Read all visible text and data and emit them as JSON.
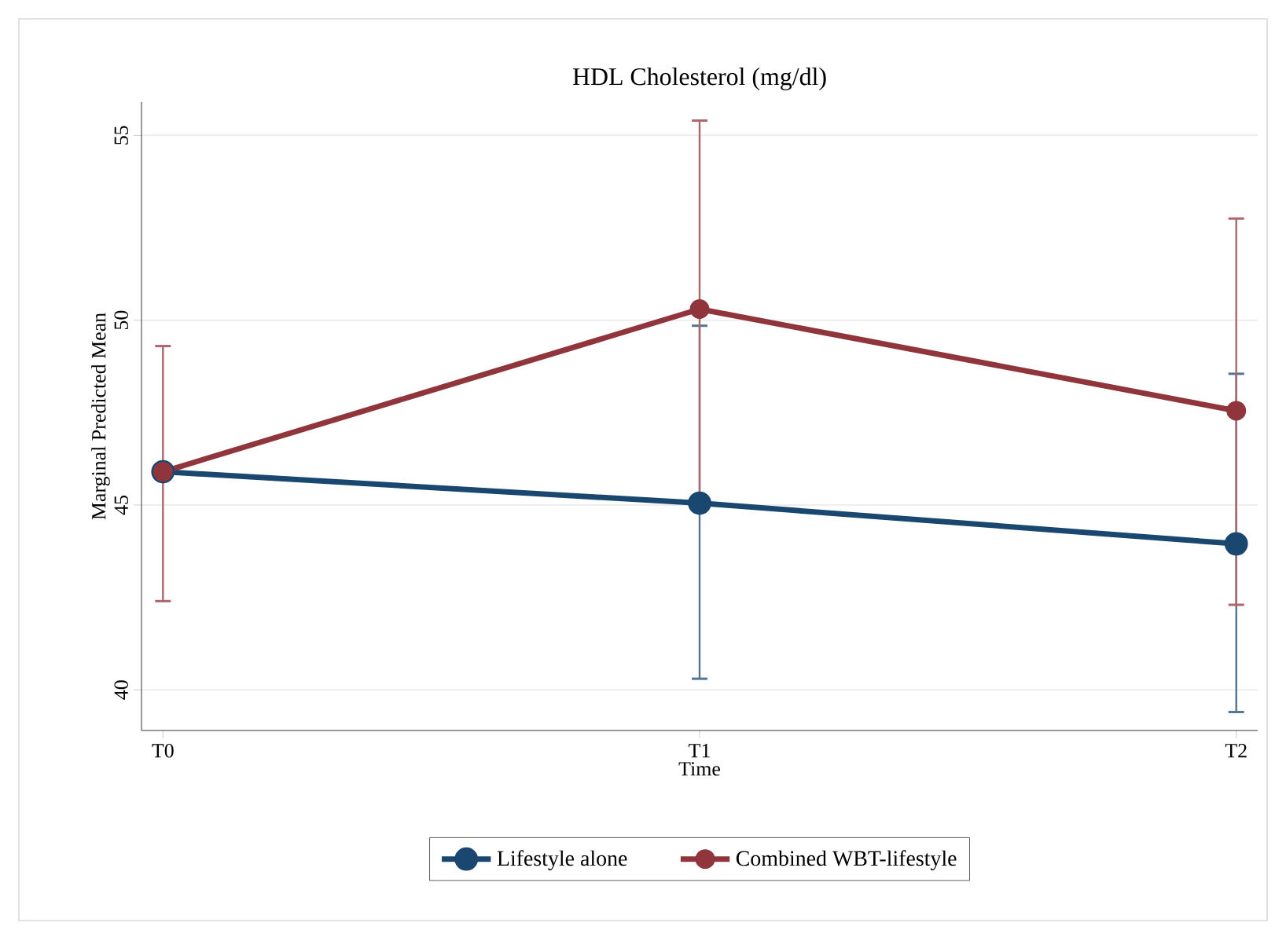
{
  "chart_data": {
    "type": "line",
    "title": "HDL Cholesterol (mg/dl)",
    "xlabel": "Time",
    "ylabel": "Marginal Predicted Mean",
    "categories": [
      "T0",
      "T1",
      "T2"
    ],
    "ylim": [
      38.9,
      55.9
    ],
    "yticks": [
      40,
      45,
      50,
      55
    ],
    "series": [
      {
        "name": "Lifestyle alone",
        "color": "#1a476f",
        "values": [
          45.9,
          45.05,
          43.95
        ],
        "errors": [
          null,
          [
            40.3,
            49.85
          ],
          [
            39.4,
            48.55
          ]
        ]
      },
      {
        "name": "Combined WBT-lifestyle",
        "color": "#90353b",
        "values": [
          45.9,
          50.3,
          47.55
        ],
        "errors": [
          [
            42.4,
            49.3
          ],
          5.1,
          [
            42.3,
            52.75
          ]
        ]
      }
    ],
    "grid": "y",
    "legend": "bottom",
    "marker": "circle",
    "line_style": "solid"
  }
}
